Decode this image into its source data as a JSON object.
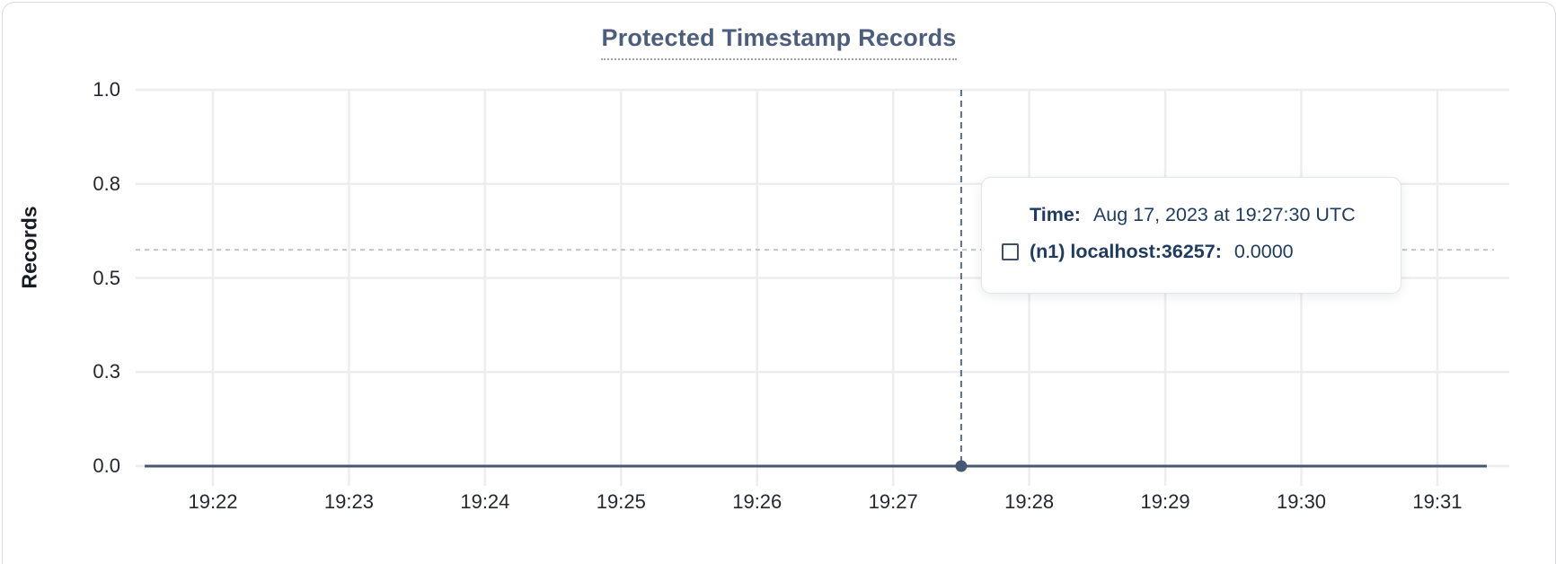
{
  "chart_data": {
    "type": "line",
    "title": "Protected Timestamp Records",
    "xlabel": "",
    "ylabel": "Records",
    "ylim": [
      0,
      1
    ],
    "grid": true,
    "x_ticks": [
      "19:22",
      "19:23",
      "19:24",
      "19:25",
      "19:26",
      "19:27",
      "19:28",
      "19:29",
      "19:30",
      "19:31"
    ],
    "y_ticks": [
      {
        "label": "1.0",
        "value": 1.0
      },
      {
        "label": "0.8",
        "value": 0.75
      },
      {
        "label": "0.5",
        "value": 0.5
      },
      {
        "label": "0.3",
        "value": 0.25
      },
      {
        "label": "0.0",
        "value": 0.0
      }
    ],
    "series": [
      {
        "name": "(n1) localhost:36257",
        "color": "#475872",
        "values": [
          0,
          0,
          0,
          0,
          0,
          0,
          0,
          0,
          0,
          0
        ]
      }
    ],
    "crosshair": {
      "time": "19:27:30",
      "x_tick_index": 5.5,
      "hover_y_value": 0.575,
      "point_value": 0.0
    }
  },
  "header": {
    "title": "Protected Timestamp Records"
  },
  "axis": {
    "y_label": "Records"
  },
  "tooltip": {
    "time_label": "Time:",
    "time_value": "Aug 17, 2023 at 19:27:30 UTC",
    "series_label": "(n1) localhost:36257:",
    "series_value": "0.0000",
    "swatch_icon": "hollow-square-swatch"
  },
  "colors": {
    "title": "#4d5e7c",
    "series_line": "#475872",
    "gridline": "#ededef",
    "crosshair_vertical": "#5d6d89",
    "crosshair_horizontal": "#bec4ce",
    "tooltip_text": "#1f3c60",
    "axis_text": "#24272e",
    "card_border": "#d9dbde"
  }
}
